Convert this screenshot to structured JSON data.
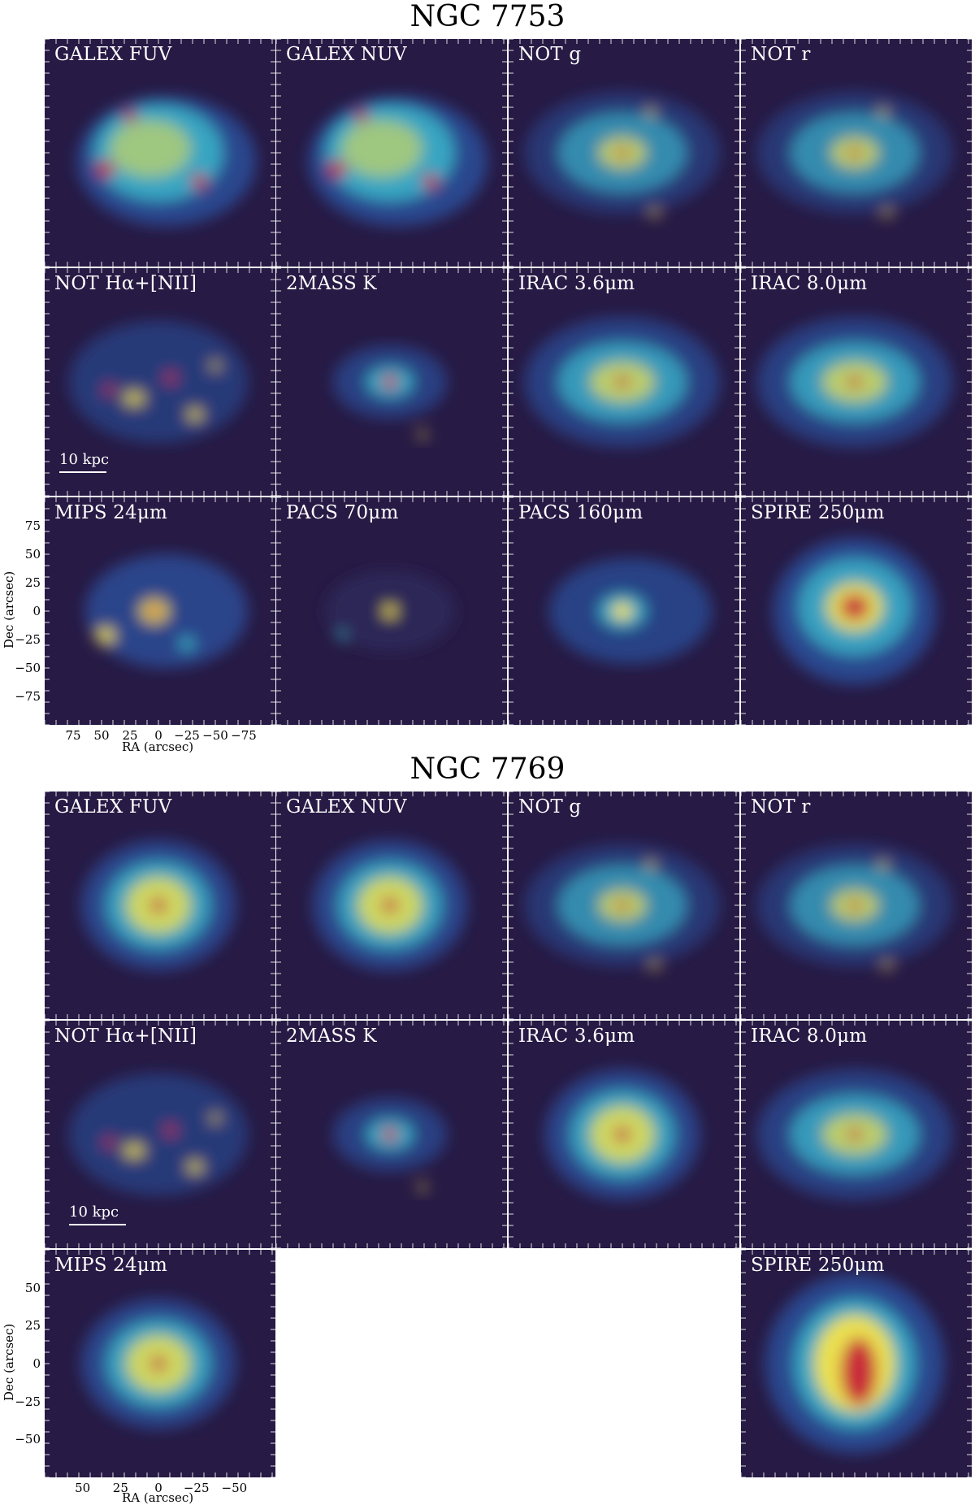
{
  "sections": [
    {
      "title": "NGC 7753",
      "panels": [
        "GALEX FUV",
        "GALEX NUV",
        "NOT g",
        "NOT r",
        "NOT Hα+[NII]",
        "2MASS K",
        "IRAC 3.6μm",
        "IRAC 8.0μm",
        "MIPS 24μm",
        "PACS 70μm",
        "PACS 160μm",
        "SPIRE 250μm"
      ],
      "scalebar": "10 kpc",
      "yticks": [
        "75",
        "50",
        "25",
        "0",
        "−25",
        "−50",
        "−75"
      ],
      "xticks": [
        "75",
        "50",
        "25",
        "0",
        "−25",
        "−50",
        "−75"
      ],
      "xlabel": "RA (arcsec)",
      "ylabel": "Dec (arcsec)"
    },
    {
      "title": "NGC 7769",
      "panels": [
        "GALEX FUV",
        "GALEX NUV",
        "NOT g",
        "NOT r",
        "NOT Hα+[NII]",
        "2MASS K",
        "IRAC 3.6μm",
        "IRAC 8.0μm",
        "MIPS 24μm",
        "SPIRE 250μm"
      ],
      "scalebar": "10 kpc",
      "yticks": [
        "50",
        "25",
        "0",
        "−25",
        "−50"
      ],
      "xticks": [
        "50",
        "25",
        "0",
        "−25",
        "−50"
      ],
      "xlabel": "RA (arcsec)",
      "ylabel": "Dec (arcsec)"
    }
  ],
  "colors": {
    "background": "#271a45",
    "low": "#2a4f9b",
    "mid": "#39b0c8",
    "high": "#f4e34a",
    "peak": "#c7203a"
  }
}
